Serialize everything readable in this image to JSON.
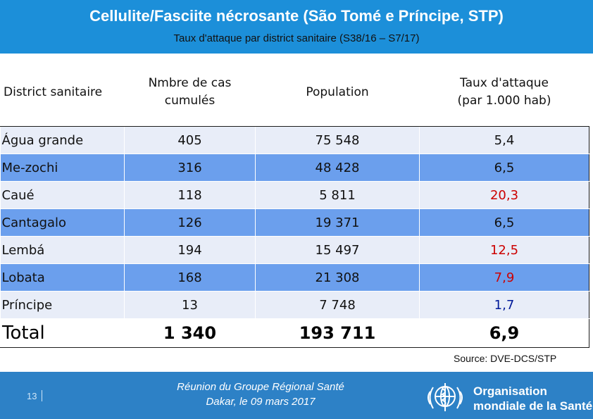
{
  "header": {
    "title": "Cellulite/Fasciite nécrosante (São Tomé e Príncipe, STP)",
    "subtitle": "Taux d'attaque par district sanitaire (S38/16 – S7/17)"
  },
  "table": {
    "columns": [
      {
        "line1": "District sanitaire",
        "line2": ""
      },
      {
        "line1": "Nmbre de cas",
        "line2": "cumulés"
      },
      {
        "line1": "Population",
        "line2": ""
      },
      {
        "line1": "Taux d'attaque",
        "line2": "(par 1.000 hab)"
      }
    ],
    "rows": [
      {
        "district": "Água grande",
        "cas": "405",
        "population": "75 548",
        "taux": "5,4",
        "taux_color": "#111111"
      },
      {
        "district": "Me-zochi",
        "cas": "316",
        "population": "48 428",
        "taux": "6,5",
        "taux_color": "#111111"
      },
      {
        "district": "Caué",
        "cas": "118",
        "population": "5 811",
        "taux": "20,3",
        "taux_color": "#cc0000"
      },
      {
        "district": "Cantagalo",
        "cas": "126",
        "population": "19 371",
        "taux": "6,5",
        "taux_color": "#111111"
      },
      {
        "district": "Lembá",
        "cas": "194",
        "population": "15 497",
        "taux": "12,5",
        "taux_color": "#cc0000"
      },
      {
        "district": "Lobata",
        "cas": "168",
        "population": "21 308",
        "taux": "7,9",
        "taux_color": "#cc0000"
      },
      {
        "district": "Príncipe",
        "cas": "13",
        "population": "7 748",
        "taux": "1,7",
        "taux_color": "#001a99"
      }
    ],
    "total": {
      "label": "Total",
      "cas": "1 340",
      "population": "193 711",
      "taux": "6,9"
    }
  },
  "source": "Source: DVE-DCS/STP",
  "footer": {
    "page_number": "13",
    "meeting_line1": "Réunion du Groupe Régional Santé",
    "meeting_line2": "Dakar, le 09 mars 2017",
    "org_line1": "Organisation",
    "org_line2": "mondiale de la Santé"
  },
  "colors": {
    "header_bg": "#1c8fd9",
    "row_light": "#e8edf8",
    "row_medium": "#6b9fed",
    "footer_bg": "#2d81c6",
    "highlight_red": "#cc0000",
    "highlight_blue": "#001a99"
  }
}
